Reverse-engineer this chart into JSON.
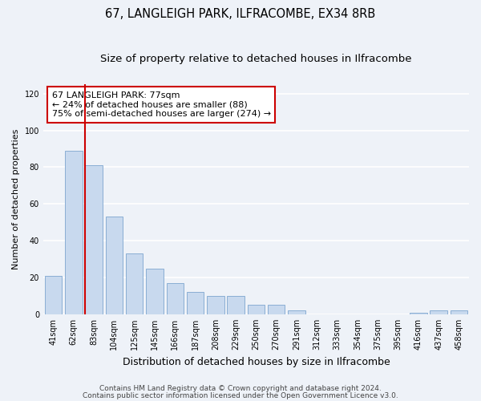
{
  "title": "67, LANGLEIGH PARK, ILFRACOMBE, EX34 8RB",
  "subtitle": "Size of property relative to detached houses in Ilfracombe",
  "xlabel": "Distribution of detached houses by size in Ilfracombe",
  "ylabel": "Number of detached properties",
  "categories": [
    "41sqm",
    "62sqm",
    "83sqm",
    "104sqm",
    "125sqm",
    "145sqm",
    "166sqm",
    "187sqm",
    "208sqm",
    "229sqm",
    "250sqm",
    "270sqm",
    "291sqm",
    "312sqm",
    "333sqm",
    "354sqm",
    "375sqm",
    "395sqm",
    "416sqm",
    "437sqm",
    "458sqm"
  ],
  "values": [
    21,
    89,
    81,
    53,
    33,
    25,
    17,
    12,
    10,
    10,
    5,
    5,
    2,
    0,
    0,
    0,
    0,
    0,
    1,
    2,
    2
  ],
  "bar_color": "#c8d9ee",
  "bar_edge_color": "#8aaed4",
  "vline_x_index": 2,
  "vline_color": "#cc0000",
  "annotation_line1": "67 LANGLEIGH PARK: 77sqm",
  "annotation_line2": "← 24% of detached houses are smaller (88)",
  "annotation_line3": "75% of semi-detached houses are larger (274) →",
  "ylim": [
    0,
    125
  ],
  "yticks": [
    0,
    20,
    40,
    60,
    80,
    100,
    120
  ],
  "background_color": "#eef2f8",
  "plot_background": "#eef2f8",
  "grid_color": "#ffffff",
  "footer_line1": "Contains HM Land Registry data © Crown copyright and database right 2024.",
  "footer_line2": "Contains public sector information licensed under the Open Government Licence v3.0.",
  "title_fontsize": 10.5,
  "subtitle_fontsize": 9.5,
  "xlabel_fontsize": 9,
  "ylabel_fontsize": 8,
  "tick_fontsize": 7,
  "annotation_fontsize": 8,
  "footer_fontsize": 6.5
}
